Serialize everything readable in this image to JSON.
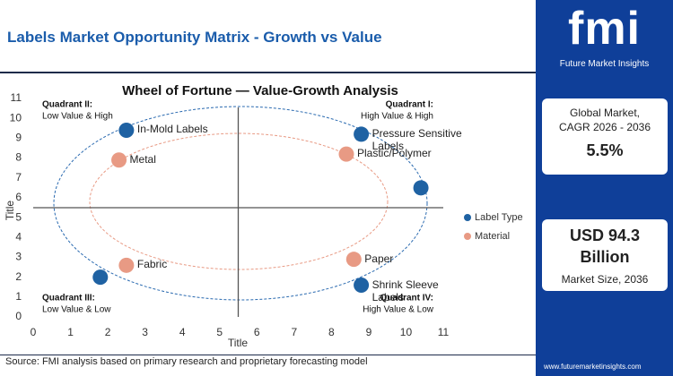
{
  "header": {
    "title": "Labels Market Opportunity Matrix - Growth vs Value"
  },
  "chart_data": {
    "type": "scatter",
    "title": "Wheel of Fortune — Value-Growth Analysis",
    "x_label": "Title",
    "y_label": "Title",
    "xlim": [
      0,
      11
    ],
    "ylim": [
      0,
      11
    ],
    "xticks": [
      0,
      1,
      2,
      3,
      4,
      5,
      6,
      7,
      8,
      9,
      10,
      11
    ],
    "yticks": [
      0,
      1,
      2,
      3,
      4,
      5,
      6,
      7,
      8,
      9,
      10,
      11
    ],
    "reference_lines": {
      "x": 5.5,
      "y": 5.5
    },
    "legend": "right",
    "annotations": [
      {
        "title": "Quadrant II:",
        "text": "Low Value & High"
      },
      {
        "title": "Quadrant I:",
        "text": "High Value & High"
      },
      {
        "title": "Quadrant III:",
        "text": "Low Value & Low"
      },
      {
        "title": "Quadrant IV:",
        "text": "High Value & Low"
      }
    ],
    "series": [
      {
        "name": "Label Type",
        "color": "#1f62a3",
        "x": [
          2.5,
          8.8,
          10.4,
          8.8,
          1.8
        ],
        "values": [
          9.4,
          9.2,
          6.5,
          1.6,
          2.0
        ],
        "labels": [
          "In-Mold Labels",
          "Pressure Sensitive Labels",
          null,
          "Shrink Sleeve Labels",
          null
        ]
      },
      {
        "name": "Material",
        "color": "#e89a84",
        "x": [
          2.3,
          8.4,
          2.5,
          8.6
        ],
        "values": [
          7.9,
          8.2,
          2.6,
          2.9
        ],
        "labels": [
          "Metal",
          "Plastic/Polymer",
          "Fabric",
          "Paper"
        ]
      }
    ]
  },
  "sidebar": {
    "logo": "fmi",
    "logo_subtitle": "Future Market Insights",
    "cards": [
      {
        "label": "Global Market, CAGR 2026 - 2036",
        "value": "5.5%"
      },
      {
        "value": "USD 94.3 Billion",
        "label": "Market Size, 2036"
      }
    ]
  },
  "footer": {
    "source": "Source: FMI analysis based on primary research and proprietary forecasting model",
    "website": "www.futuremarketinsights.com"
  }
}
